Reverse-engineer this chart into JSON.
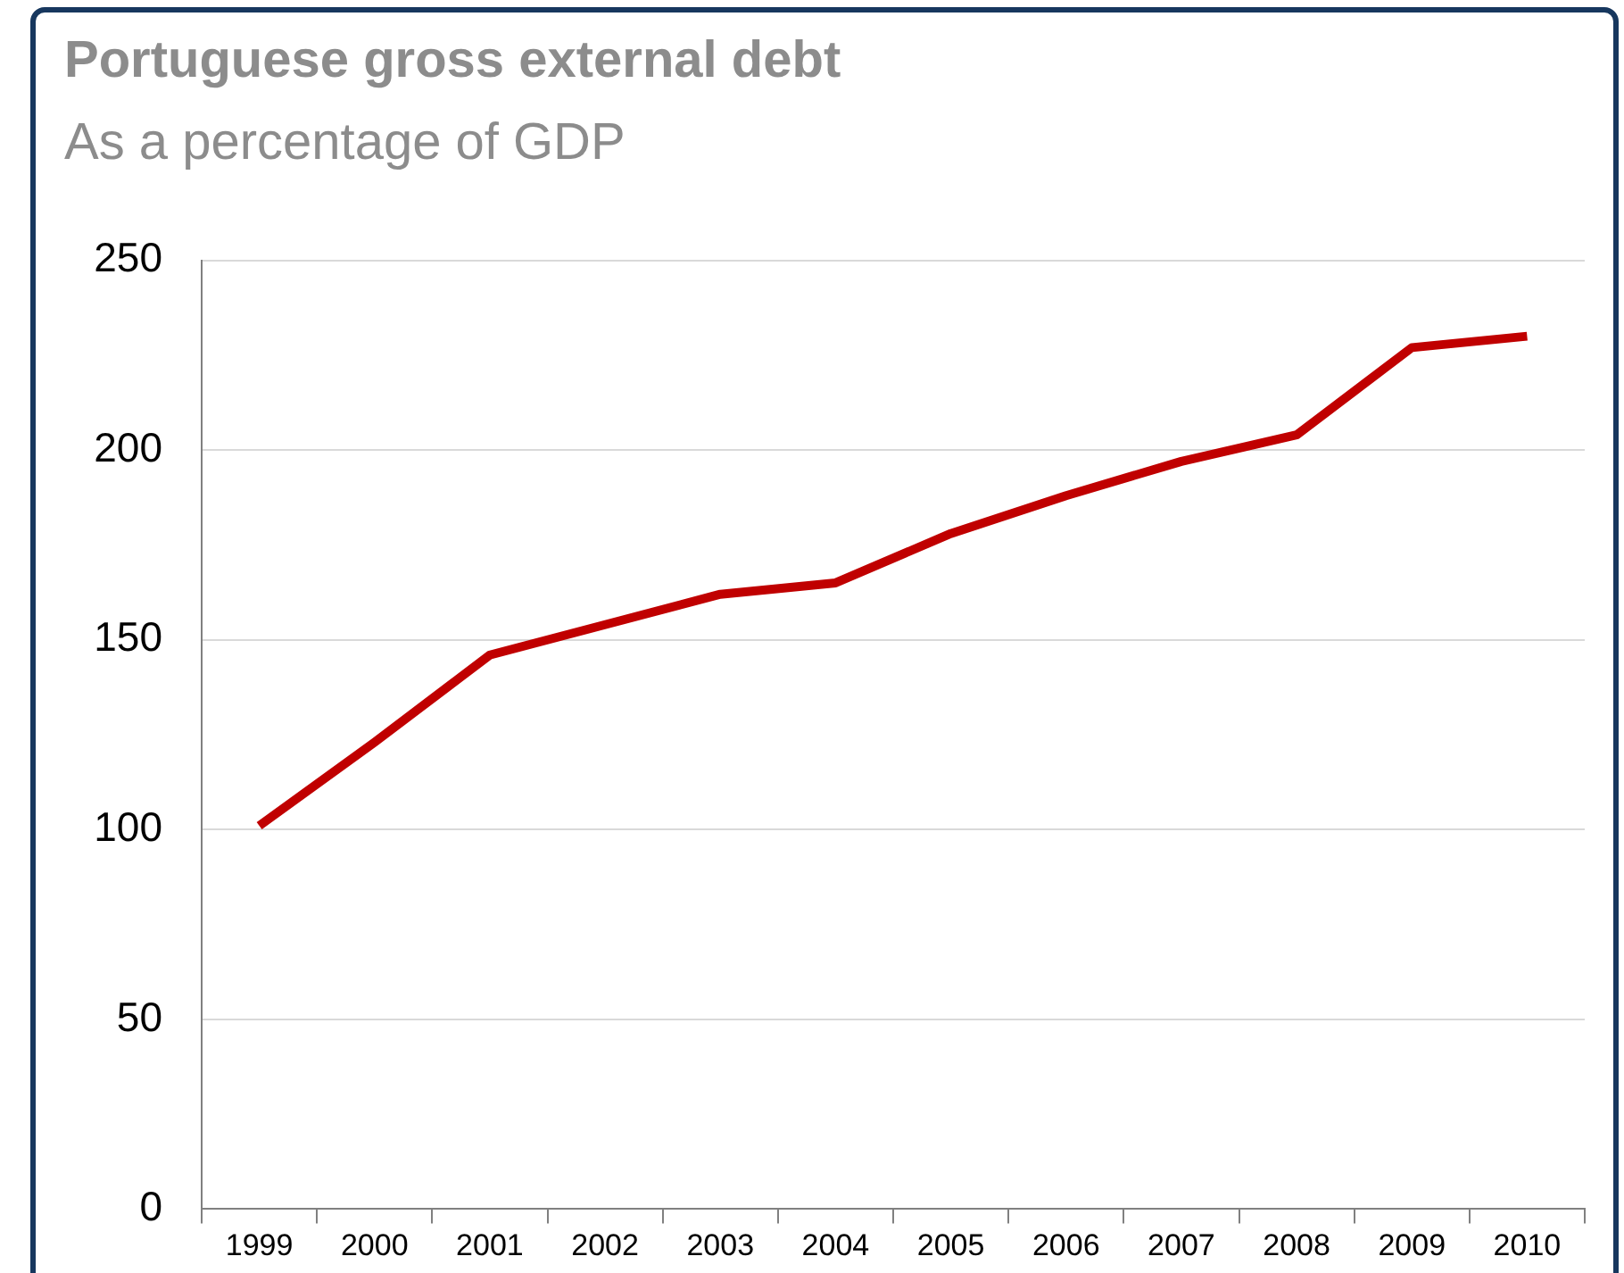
{
  "chart_data": {
    "type": "line",
    "title": "Portuguese gross external debt",
    "subtitle": "As a percentage of GDP",
    "categories": [
      "1999",
      "2000",
      "2001",
      "2002",
      "2003",
      "2004",
      "2005",
      "2006",
      "2007",
      "2008",
      "2009",
      "2010"
    ],
    "series": [
      {
        "color": "#c00000",
        "values": [
          101,
          123,
          146,
          154,
          162,
          165,
          178,
          188,
          197,
          204,
          227,
          230
        ]
      }
    ],
    "ylim": [
      0,
      250
    ],
    "yticks": [
      0,
      50,
      100,
      150,
      200,
      250
    ],
    "grid": "y",
    "legend": false,
    "marker": "none",
    "line_style": "solid"
  }
}
